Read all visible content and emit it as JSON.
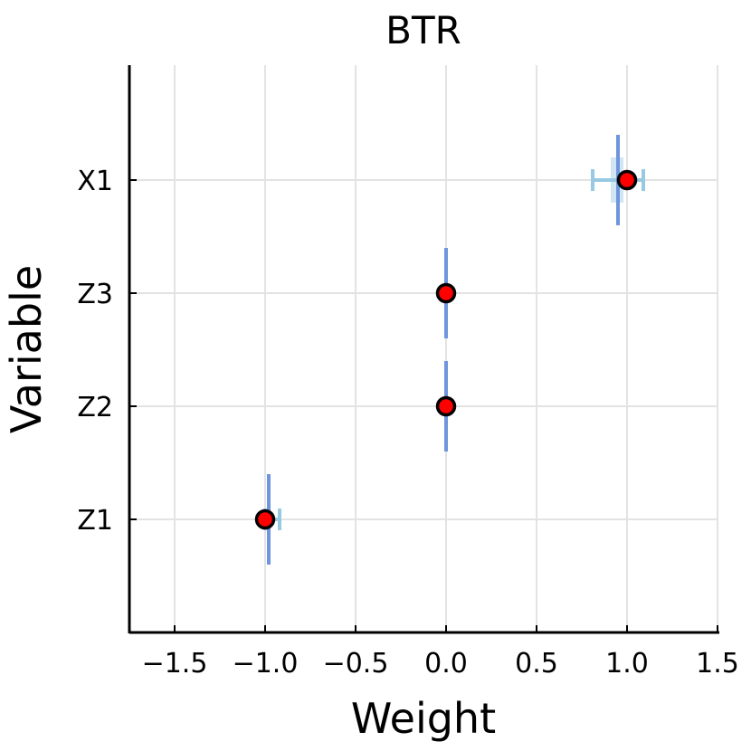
{
  "chart_data": {
    "type": "scatter",
    "title": "BTR",
    "xlabel": "Weight",
    "ylabel": "Variable",
    "xlim": [
      -1.75,
      1.5
    ],
    "xticks": [
      -1.5,
      -1.0,
      -0.5,
      0.0,
      0.5,
      1.0,
      1.5
    ],
    "xtick_labels": [
      "−1.5",
      "−1.0",
      "−0.5",
      "0.0",
      "0.5",
      "1.0",
      "1.5"
    ],
    "categories": [
      "Z1",
      "Z2",
      "Z3",
      "X1"
    ],
    "grid": true,
    "colors": {
      "point": "#ff0000",
      "point_edge": "#000000",
      "vertical_bar": "#6f95de",
      "horizontal_bar": "#97c9e3",
      "box_fill": "#c6dff0",
      "grid": "#e3e3e3",
      "axis": "#000000"
    },
    "points": [
      {
        "variable": "Z1",
        "value": -1.0,
        "vbar": {
          "x": -0.98,
          "low": -0.4,
          "high": 0.4
        },
        "hbar": {
          "low": -1.0,
          "high": -0.92
        }
      },
      {
        "variable": "Z2",
        "value": 0.0,
        "vbar": {
          "x": 0.0,
          "low": -0.4,
          "high": 0.4
        }
      },
      {
        "variable": "Z3",
        "value": 0.0,
        "vbar": {
          "x": 0.0,
          "low": -0.4,
          "high": 0.4
        }
      },
      {
        "variable": "X1",
        "value": 1.0,
        "vbar": {
          "x": 0.95,
          "low": -0.4,
          "high": 0.4
        },
        "hbar": {
          "low": 0.81,
          "high": 1.09
        },
        "box": {
          "x0": 0.91,
          "x1": 0.98,
          "y0": -0.2,
          "y1": 0.2
        }
      }
    ]
  }
}
